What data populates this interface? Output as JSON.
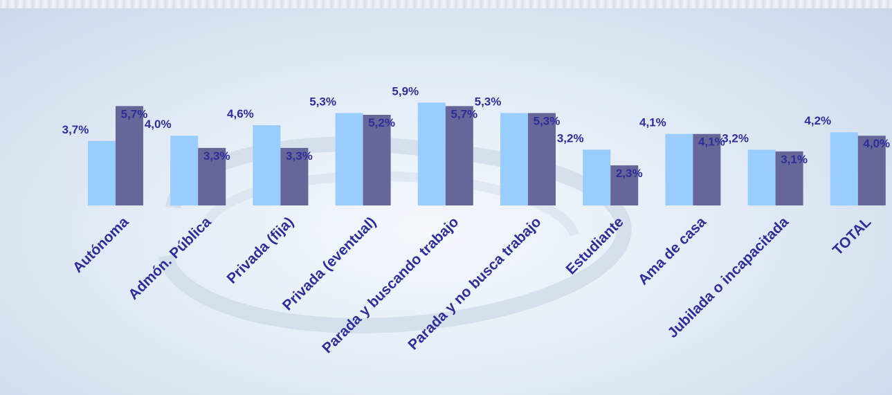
{
  "chart_data": {
    "type": "bar",
    "categories": [
      "Autónoma",
      "Admón. Pública",
      "Privada (fija)",
      "Privada (eventual)",
      "Parada y buscando trabajo",
      "Parada y no busca trabajo",
      "Estudiante",
      "Ama de casa",
      "Jubilada o incapacitada",
      "TOTAL"
    ],
    "series": [
      {
        "values": [
          3.7,
          4.0,
          4.6,
          5.3,
          5.9,
          5.3,
          3.2,
          4.1,
          3.2,
          4.2
        ],
        "labels": [
          "3,7%",
          "4,0%",
          "4,6%",
          "5,3%",
          "5,9%",
          "5,3%",
          "3,2%",
          "4,1%",
          "3,2%",
          "4,2%"
        ],
        "color": "#99ccff"
      },
      {
        "values": [
          5.7,
          3.3,
          3.3,
          5.2,
          5.7,
          5.3,
          2.3,
          4.1,
          3.1,
          4.0
        ],
        "labels": [
          "5,7%",
          "3,3%",
          "3,3%",
          "5,2%",
          "5,7%",
          "5,3%",
          "2,3%",
          "4,1%",
          "3,1%",
          "4,0%"
        ],
        "color": "#666699"
      }
    ],
    "ylim": [
      0,
      6
    ],
    "grid": false,
    "legend": "none"
  }
}
